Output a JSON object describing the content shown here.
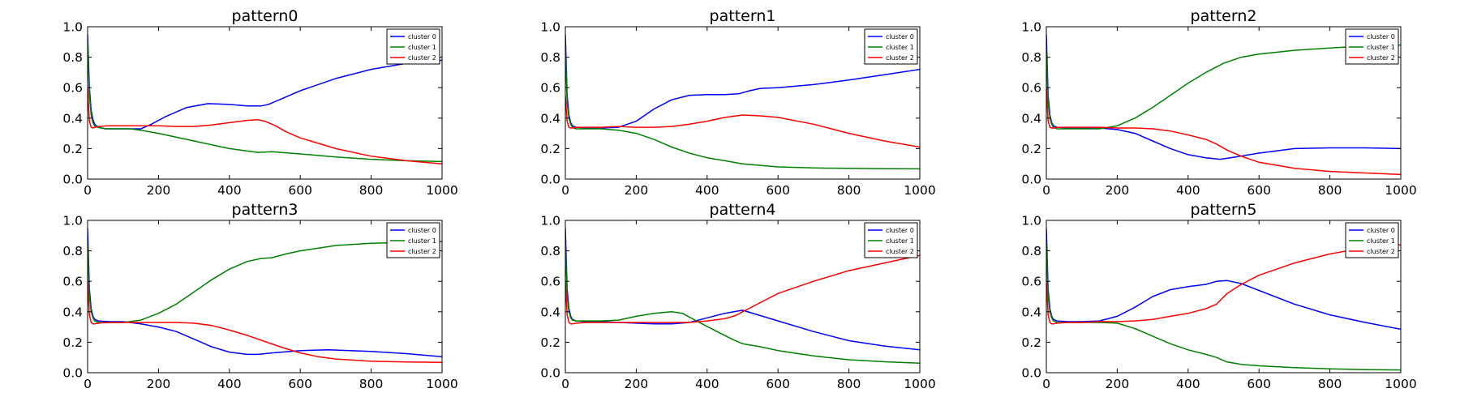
{
  "chart_data": [
    {
      "type": "line",
      "title": "pattern0",
      "xlim": [
        0,
        1000
      ],
      "ylim": [
        0.0,
        1.0
      ],
      "xticks": [
        "0",
        "200",
        "400",
        "600",
        "800",
        "1000"
      ],
      "yticks": [
        "0.0",
        "0.2",
        "0.4",
        "0.6",
        "0.8",
        "1.0"
      ],
      "legend": "top-right",
      "series": [
        {
          "name": "cluster 0",
          "color": "#0000ff",
          "x": [
            0,
            5,
            10,
            15,
            20,
            30,
            50,
            80,
            120,
            150,
            180,
            220,
            280,
            340,
            400,
            450,
            490,
            510,
            550,
            600,
            700,
            800,
            900,
            1000
          ],
          "y": [
            0.95,
            0.6,
            0.45,
            0.39,
            0.36,
            0.34,
            0.33,
            0.33,
            0.33,
            0.33,
            0.36,
            0.41,
            0.47,
            0.495,
            0.49,
            0.48,
            0.48,
            0.49,
            0.53,
            0.58,
            0.66,
            0.72,
            0.76,
            0.78
          ]
        },
        {
          "name": "cluster 1",
          "color": "#008000",
          "x": [
            0,
            5,
            10,
            15,
            20,
            30,
            50,
            80,
            120,
            150,
            200,
            300,
            400,
            480,
            520,
            600,
            700,
            800,
            900,
            1000
          ],
          "y": [
            0.9,
            0.55,
            0.42,
            0.37,
            0.35,
            0.34,
            0.33,
            0.33,
            0.33,
            0.32,
            0.3,
            0.25,
            0.2,
            0.175,
            0.18,
            0.165,
            0.145,
            0.13,
            0.12,
            0.115
          ]
        },
        {
          "name": "cluster 2",
          "color": "#ff0000",
          "x": [
            0,
            5,
            10,
            15,
            20,
            30,
            60,
            100,
            150,
            200,
            250,
            300,
            350,
            400,
            450,
            480,
            500,
            530,
            560,
            600,
            700,
            800,
            900,
            1000
          ],
          "y": [
            0.6,
            0.38,
            0.34,
            0.335,
            0.34,
            0.345,
            0.35,
            0.35,
            0.35,
            0.35,
            0.345,
            0.345,
            0.355,
            0.37,
            0.385,
            0.39,
            0.38,
            0.35,
            0.31,
            0.27,
            0.2,
            0.15,
            0.12,
            0.1
          ]
        }
      ]
    },
    {
      "type": "line",
      "title": "pattern1",
      "xlim": [
        0,
        1000
      ],
      "ylim": [
        0.0,
        1.0
      ],
      "xticks": [
        "0",
        "200",
        "400",
        "600",
        "800",
        "1000"
      ],
      "yticks": [
        "0.0",
        "0.2",
        "0.4",
        "0.6",
        "0.8",
        "1.0"
      ],
      "legend": "top-right",
      "series": [
        {
          "name": "cluster 0",
          "color": "#0000ff",
          "x": [
            0,
            5,
            10,
            15,
            20,
            30,
            60,
            100,
            150,
            200,
            250,
            300,
            350,
            400,
            450,
            490,
            520,
            550,
            600,
            700,
            800,
            900,
            1000
          ],
          "y": [
            0.95,
            0.55,
            0.42,
            0.37,
            0.35,
            0.34,
            0.335,
            0.335,
            0.34,
            0.38,
            0.46,
            0.52,
            0.55,
            0.555,
            0.555,
            0.56,
            0.58,
            0.595,
            0.6,
            0.62,
            0.65,
            0.685,
            0.72
          ]
        },
        {
          "name": "cluster 1",
          "color": "#008000",
          "x": [
            0,
            5,
            10,
            15,
            20,
            30,
            60,
            100,
            150,
            200,
            250,
            300,
            350,
            400,
            450,
            500,
            550,
            600,
            700,
            800,
            900,
            1000
          ],
          "y": [
            0.85,
            0.5,
            0.4,
            0.36,
            0.34,
            0.33,
            0.33,
            0.33,
            0.32,
            0.3,
            0.26,
            0.21,
            0.17,
            0.14,
            0.12,
            0.1,
            0.09,
            0.08,
            0.073,
            0.07,
            0.068,
            0.067
          ]
        },
        {
          "name": "cluster 2",
          "color": "#ff0000",
          "x": [
            0,
            5,
            10,
            15,
            20,
            30,
            60,
            100,
            150,
            200,
            250,
            300,
            350,
            400,
            450,
            500,
            550,
            600,
            700,
            800,
            900,
            1000
          ],
          "y": [
            0.55,
            0.38,
            0.34,
            0.335,
            0.335,
            0.34,
            0.34,
            0.34,
            0.345,
            0.34,
            0.34,
            0.345,
            0.36,
            0.38,
            0.405,
            0.42,
            0.415,
            0.405,
            0.36,
            0.3,
            0.25,
            0.21
          ]
        }
      ]
    },
    {
      "type": "line",
      "title": "pattern2",
      "xlim": [
        0,
        1000
      ],
      "ylim": [
        0.0,
        1.0
      ],
      "xticks": [
        "0",
        "200",
        "400",
        "600",
        "800",
        "1000"
      ],
      "yticks": [
        "0.0",
        "0.2",
        "0.4",
        "0.6",
        "0.8",
        "1.0"
      ],
      "legend": "top-right",
      "series": [
        {
          "name": "cluster 0",
          "color": "#0000ff",
          "x": [
            0,
            5,
            10,
            15,
            20,
            30,
            60,
            100,
            150,
            200,
            250,
            300,
            350,
            400,
            450,
            490,
            520,
            600,
            700,
            800,
            900,
            1000
          ],
          "y": [
            0.95,
            0.55,
            0.42,
            0.37,
            0.35,
            0.34,
            0.335,
            0.335,
            0.335,
            0.325,
            0.3,
            0.25,
            0.2,
            0.16,
            0.14,
            0.13,
            0.14,
            0.17,
            0.2,
            0.205,
            0.205,
            0.2
          ]
        },
        {
          "name": "cluster 1",
          "color": "#008000",
          "x": [
            0,
            5,
            10,
            15,
            20,
            30,
            60,
            100,
            150,
            200,
            250,
            300,
            350,
            400,
            450,
            500,
            550,
            600,
            700,
            800,
            900,
            1000
          ],
          "y": [
            0.85,
            0.5,
            0.4,
            0.36,
            0.34,
            0.33,
            0.33,
            0.33,
            0.33,
            0.35,
            0.4,
            0.47,
            0.55,
            0.63,
            0.7,
            0.76,
            0.8,
            0.82,
            0.845,
            0.86,
            0.875,
            0.88
          ]
        },
        {
          "name": "cluster 2",
          "color": "#ff0000",
          "x": [
            0,
            5,
            10,
            15,
            20,
            30,
            60,
            100,
            150,
            200,
            250,
            300,
            350,
            400,
            450,
            480,
            510,
            550,
            600,
            700,
            800,
            900,
            1000
          ],
          "y": [
            0.6,
            0.38,
            0.34,
            0.335,
            0.335,
            0.34,
            0.34,
            0.34,
            0.34,
            0.335,
            0.335,
            0.33,
            0.315,
            0.29,
            0.26,
            0.23,
            0.19,
            0.15,
            0.11,
            0.07,
            0.05,
            0.04,
            0.03
          ]
        }
      ]
    },
    {
      "type": "line",
      "title": "pattern3",
      "xlim": [
        0,
        1000
      ],
      "ylim": [
        0.0,
        1.0
      ],
      "xticks": [
        "0",
        "200",
        "400",
        "600",
        "800",
        "1000"
      ],
      "yticks": [
        "0.0",
        "0.2",
        "0.4",
        "0.6",
        "0.8",
        "1.0"
      ],
      "legend": "top-right",
      "series": [
        {
          "name": "cluster 0",
          "color": "#0000ff",
          "x": [
            0,
            5,
            10,
            15,
            20,
            30,
            60,
            100,
            150,
            200,
            250,
            300,
            350,
            400,
            450,
            480,
            520,
            600,
            680,
            800,
            900,
            1000
          ],
          "y": [
            0.95,
            0.55,
            0.42,
            0.37,
            0.35,
            0.34,
            0.335,
            0.335,
            0.32,
            0.3,
            0.27,
            0.22,
            0.17,
            0.135,
            0.12,
            0.12,
            0.13,
            0.145,
            0.15,
            0.14,
            0.125,
            0.105
          ]
        },
        {
          "name": "cluster 1",
          "color": "#008000",
          "x": [
            0,
            5,
            10,
            15,
            20,
            30,
            60,
            100,
            150,
            200,
            250,
            300,
            350,
            400,
            450,
            490,
            520,
            560,
            600,
            700,
            800,
            900,
            1000
          ],
          "y": [
            0.85,
            0.5,
            0.4,
            0.36,
            0.34,
            0.33,
            0.33,
            0.33,
            0.345,
            0.39,
            0.45,
            0.53,
            0.61,
            0.68,
            0.73,
            0.75,
            0.755,
            0.78,
            0.8,
            0.835,
            0.85,
            0.855,
            0.86
          ]
        },
        {
          "name": "cluster 2",
          "color": "#ff0000",
          "x": [
            0,
            5,
            10,
            15,
            20,
            30,
            60,
            100,
            150,
            200,
            250,
            300,
            350,
            400,
            450,
            500,
            550,
            600,
            650,
            700,
            800,
            900,
            1000
          ],
          "y": [
            0.6,
            0.38,
            0.33,
            0.32,
            0.32,
            0.325,
            0.33,
            0.33,
            0.33,
            0.33,
            0.33,
            0.325,
            0.31,
            0.28,
            0.245,
            0.205,
            0.165,
            0.13,
            0.105,
            0.09,
            0.075,
            0.07,
            0.068
          ]
        }
      ]
    },
    {
      "type": "line",
      "title": "pattern4",
      "xlim": [
        0,
        1000
      ],
      "ylim": [
        0.0,
        1.0
      ],
      "xticks": [
        "0",
        "200",
        "400",
        "600",
        "800",
        "1000"
      ],
      "yticks": [
        "0.0",
        "0.2",
        "0.4",
        "0.6",
        "0.8",
        "1.0"
      ],
      "legend": "top-right",
      "series": [
        {
          "name": "cluster 0",
          "color": "#0000ff",
          "x": [
            0,
            5,
            10,
            15,
            20,
            30,
            60,
            100,
            150,
            200,
            250,
            300,
            350,
            400,
            450,
            500,
            550,
            600,
            700,
            800,
            900,
            1000
          ],
          "y": [
            0.95,
            0.55,
            0.42,
            0.37,
            0.35,
            0.34,
            0.335,
            0.335,
            0.33,
            0.325,
            0.32,
            0.32,
            0.33,
            0.36,
            0.39,
            0.41,
            0.375,
            0.34,
            0.27,
            0.21,
            0.175,
            0.15
          ]
        },
        {
          "name": "cluster 1",
          "color": "#008000",
          "x": [
            0,
            5,
            10,
            15,
            20,
            30,
            60,
            100,
            150,
            200,
            250,
            300,
            330,
            370,
            420,
            470,
            500,
            550,
            600,
            700,
            800,
            900,
            1000
          ],
          "y": [
            0.85,
            0.5,
            0.4,
            0.36,
            0.345,
            0.34,
            0.34,
            0.34,
            0.345,
            0.37,
            0.39,
            0.4,
            0.39,
            0.34,
            0.28,
            0.22,
            0.19,
            0.17,
            0.145,
            0.11,
            0.085,
            0.072,
            0.062
          ]
        },
        {
          "name": "cluster 2",
          "color": "#ff0000",
          "x": [
            0,
            5,
            10,
            15,
            20,
            30,
            60,
            100,
            150,
            200,
            250,
            300,
            350,
            400,
            450,
            480,
            500,
            550,
            600,
            700,
            800,
            900,
            1000
          ],
          "y": [
            0.6,
            0.38,
            0.33,
            0.32,
            0.32,
            0.325,
            0.33,
            0.33,
            0.33,
            0.33,
            0.33,
            0.33,
            0.33,
            0.34,
            0.355,
            0.375,
            0.4,
            0.46,
            0.52,
            0.6,
            0.67,
            0.72,
            0.77
          ]
        }
      ]
    },
    {
      "type": "line",
      "title": "pattern5",
      "xlim": [
        0,
        1000
      ],
      "ylim": [
        0.0,
        1.0
      ],
      "xticks": [
        "0",
        "200",
        "400",
        "600",
        "800",
        "1000"
      ],
      "yticks": [
        "0.0",
        "0.2",
        "0.4",
        "0.6",
        "0.8",
        "1.0"
      ],
      "legend": "top-right",
      "series": [
        {
          "name": "cluster 0",
          "color": "#0000ff",
          "x": [
            0,
            5,
            10,
            15,
            20,
            30,
            60,
            100,
            150,
            200,
            250,
            300,
            350,
            400,
            450,
            480,
            510,
            550,
            600,
            700,
            800,
            900,
            1000
          ],
          "y": [
            0.95,
            0.55,
            0.42,
            0.37,
            0.35,
            0.34,
            0.335,
            0.335,
            0.34,
            0.37,
            0.43,
            0.5,
            0.545,
            0.565,
            0.58,
            0.6,
            0.605,
            0.585,
            0.54,
            0.45,
            0.38,
            0.33,
            0.285
          ]
        },
        {
          "name": "cluster 1",
          "color": "#008000",
          "x": [
            0,
            5,
            10,
            15,
            20,
            30,
            60,
            100,
            150,
            200,
            250,
            300,
            350,
            400,
            450,
            480,
            510,
            550,
            600,
            700,
            800,
            900,
            1000
          ],
          "y": [
            0.85,
            0.5,
            0.4,
            0.36,
            0.34,
            0.33,
            0.33,
            0.33,
            0.33,
            0.325,
            0.29,
            0.24,
            0.19,
            0.15,
            0.12,
            0.1,
            0.07,
            0.055,
            0.045,
            0.033,
            0.025,
            0.02,
            0.018
          ]
        },
        {
          "name": "cluster 2",
          "color": "#ff0000",
          "x": [
            0,
            5,
            10,
            15,
            20,
            30,
            60,
            100,
            150,
            200,
            250,
            300,
            350,
            400,
            450,
            480,
            510,
            550,
            600,
            700,
            800,
            900,
            1000
          ],
          "y": [
            0.6,
            0.38,
            0.33,
            0.32,
            0.32,
            0.325,
            0.33,
            0.33,
            0.335,
            0.335,
            0.34,
            0.35,
            0.37,
            0.39,
            0.42,
            0.45,
            0.52,
            0.58,
            0.64,
            0.72,
            0.78,
            0.82,
            0.84
          ]
        }
      ]
    }
  ]
}
